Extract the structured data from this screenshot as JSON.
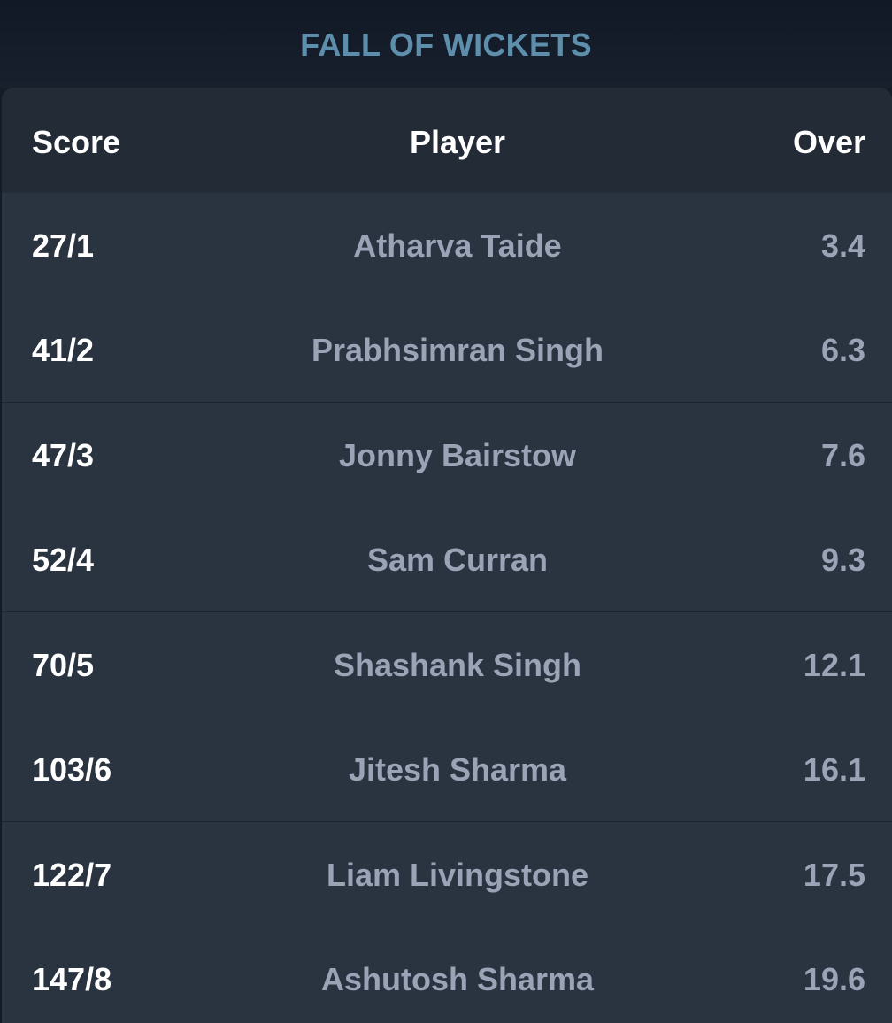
{
  "title": "FALL OF WICKETS",
  "columns": {
    "score": "Score",
    "player": "Player",
    "over": "Over"
  },
  "wickets": [
    {
      "score": "27/1",
      "player": "Atharva Taide",
      "over": "3.4"
    },
    {
      "score": "41/2",
      "player": "Prabhsimran Singh",
      "over": "6.3"
    },
    {
      "score": "47/3",
      "player": "Jonny Bairstow",
      "over": "7.6"
    },
    {
      "score": "52/4",
      "player": "Sam Curran",
      "over": "9.3"
    },
    {
      "score": "70/5",
      "player": "Shashank Singh",
      "over": "12.1"
    },
    {
      "score": "103/6",
      "player": "Jitesh Sharma",
      "over": "16.1"
    },
    {
      "score": "122/7",
      "player": "Liam Livingstone",
      "over": "17.5"
    },
    {
      "score": "147/8",
      "player": "Ashutosh Sharma",
      "over": "19.6"
    }
  ],
  "colors": {
    "title": "#5d8fac",
    "card": "#2a3340",
    "header": "#232b37",
    "muted_text": "#9aa4b6"
  }
}
